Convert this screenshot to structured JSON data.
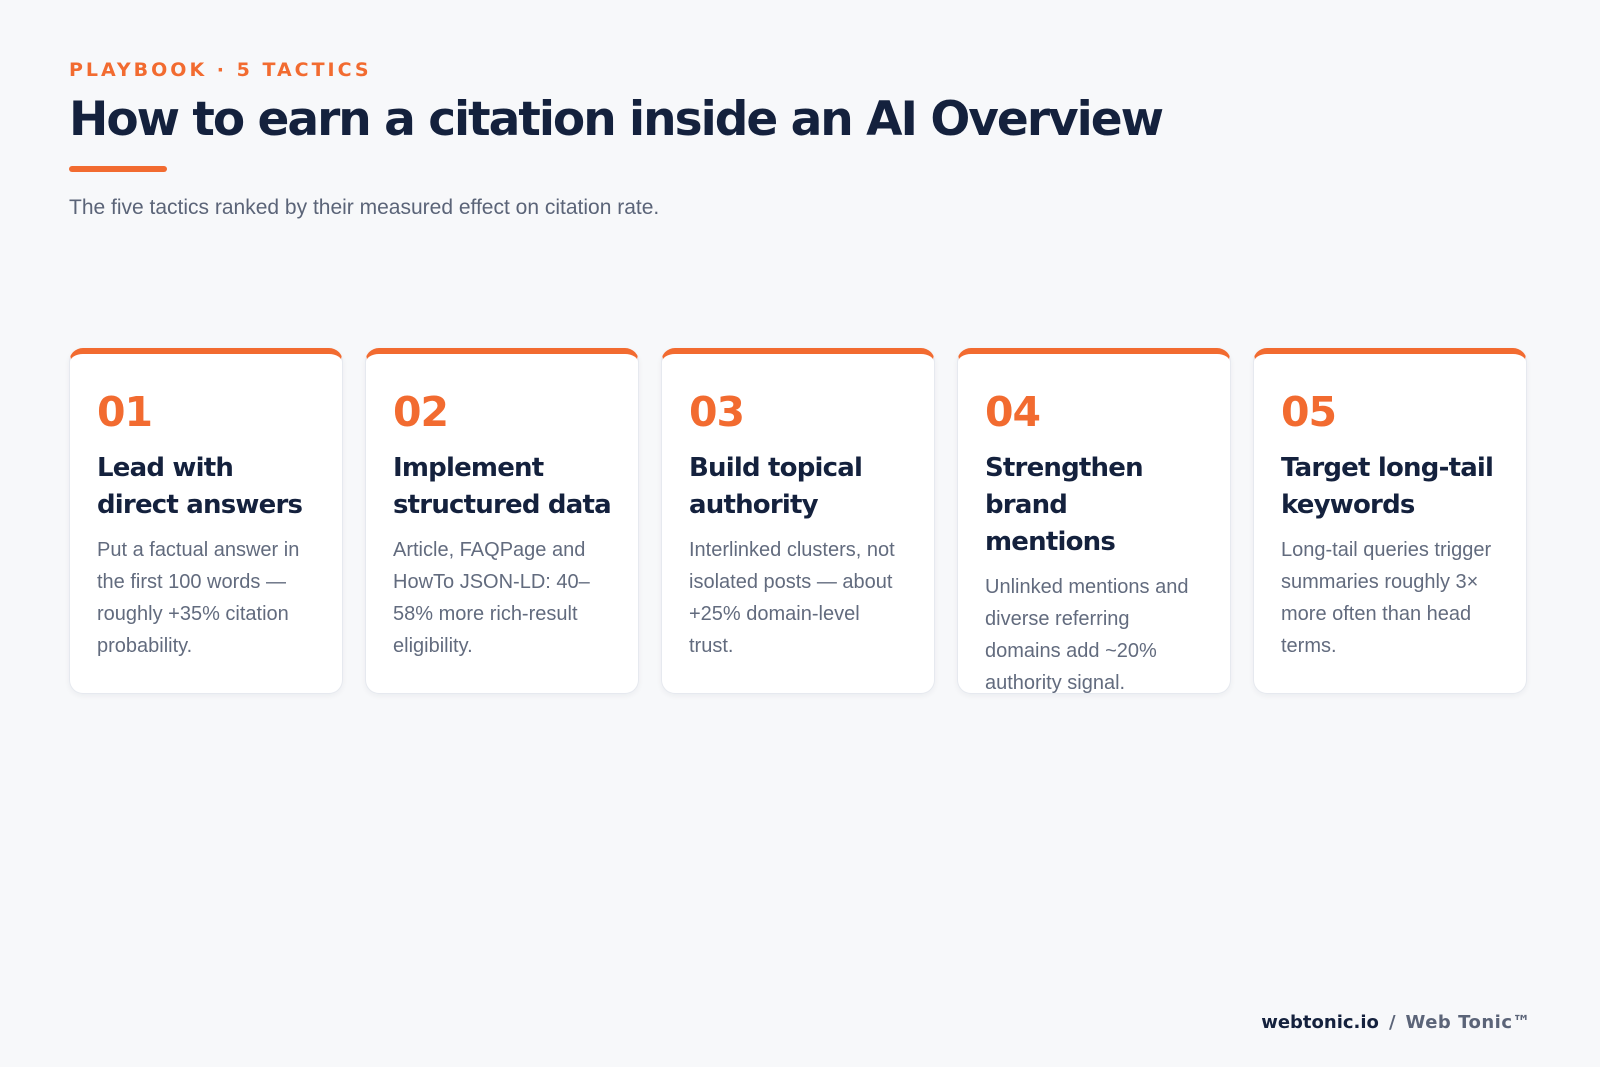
{
  "header": {
    "eyebrow": "PLAYBOOK · 5 TACTICS",
    "title": "How to earn a citation inside an AI Overview",
    "subtitle": "The five tactics ranked by their measured effect on citation rate."
  },
  "tactics": [
    {
      "number": "01",
      "title": "Lead with direct answers",
      "text": "Put a factual answer in the first 100 words — roughly +35% citation probability."
    },
    {
      "number": "02",
      "title": "Implement structured data",
      "text": "Article, FAQPage and HowTo JSON-LD: 40–58% more rich-result eligibility."
    },
    {
      "number": "03",
      "title": "Build topical authority",
      "text": "Interlinked clusters, not isolated posts — about +25% domain-level trust."
    },
    {
      "number": "04",
      "title": "Strengthen brand mentions",
      "text": "Unlinked mentions and diverse referring domains add ~20% authority signal."
    },
    {
      "number": "05",
      "title": "Target long-tail keywords",
      "text": "Long-tail queries trigger summaries roughly 3× more often than head terms."
    }
  ],
  "footer": {
    "site": "webtonic.io",
    "separator": "/",
    "brand": "Web Tonic™"
  },
  "colors": {
    "accent": "#f26b30",
    "heading": "#14213d",
    "body_text": "#626b7e",
    "background": "#f7f8fa"
  }
}
